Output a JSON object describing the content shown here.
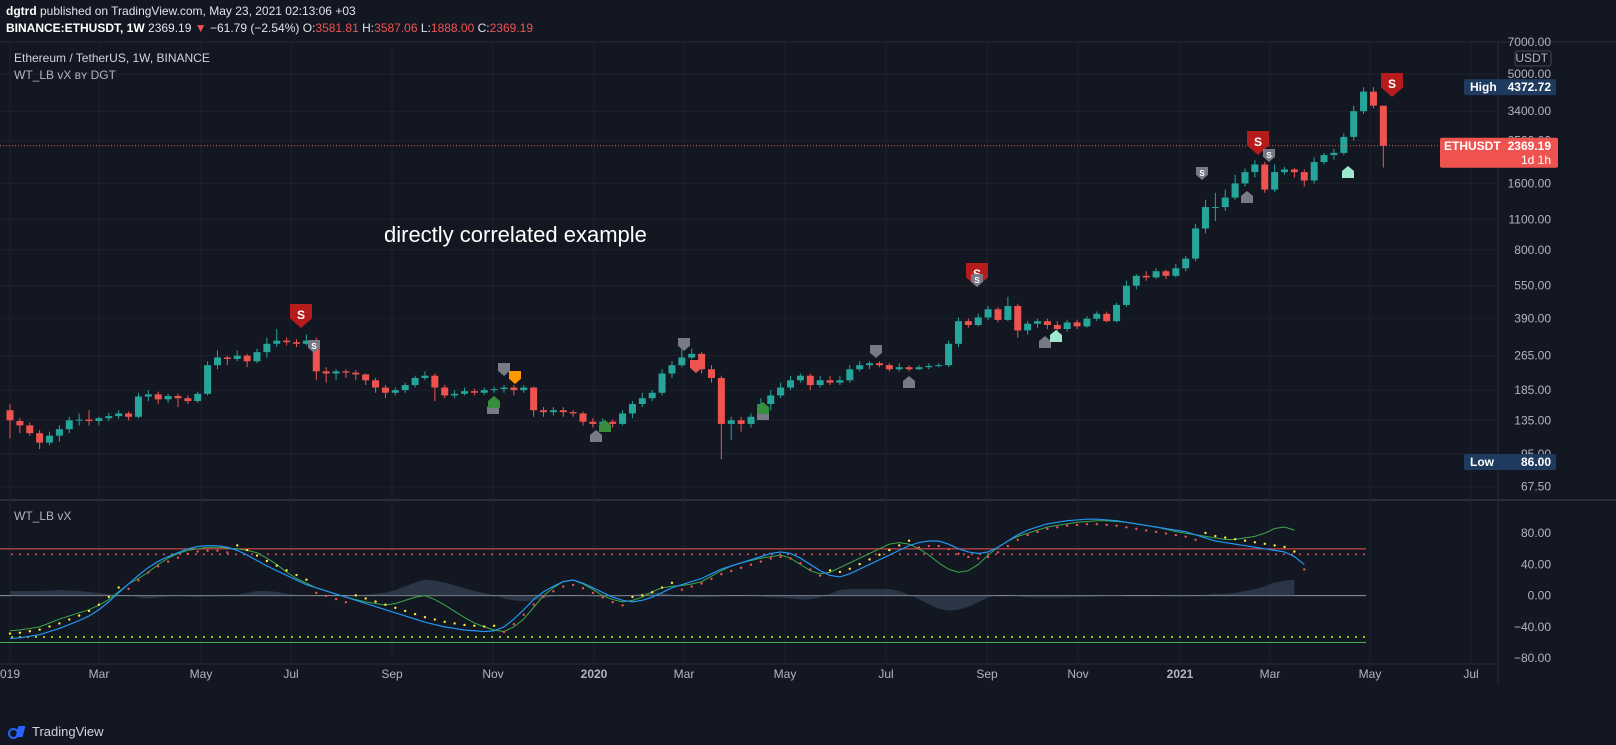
{
  "header": {
    "publisher": "dgtrd",
    "published_text": "published on TradingView.com, May 23, 2021 02:13:06 +03",
    "symbol_line": "BINANCE:ETHUSDT, 1W",
    "last": "2369.19",
    "change": "−61.79 (−2.54%)",
    "o_label": "O:",
    "o": "3581.81",
    "h_label": "H:",
    "h": "3587.06",
    "l_label": "L:",
    "l": "1888.00",
    "c_label": "C:",
    "c": "2369.19"
  },
  "legend": {
    "pair": "Ethereum / TetherUS, 1W, BINANCE",
    "indicator": "WT_LB vX ʙʏ DGT",
    "lower_pane": "WT_LB vX"
  },
  "annotation": "directly correlated example",
  "price_axis": {
    "currency": "USDT",
    "high_label": "High",
    "high_value": "4372.72",
    "low_label": "Low",
    "low_value": "86.00",
    "last_symbol": "ETHUSDT",
    "last_value": "2369.19",
    "countdown": "1d 1h",
    "ticks": [
      "7000.00",
      "5000.00",
      "3400.00",
      "2500.00",
      "1600.00",
      "1100.00",
      "800.00",
      "550.00",
      "390.00",
      "265.00",
      "185.00",
      "135.00",
      "95.00",
      "67.50"
    ]
  },
  "osc_axis": {
    "ticks": [
      "80.00",
      "40.00",
      "0.00",
      "−40.00",
      "−80.00"
    ]
  },
  "time_axis": {
    "labels": [
      "019",
      "Mar",
      "May",
      "Jul",
      "Sep",
      "Nov",
      "2020",
      "Mar",
      "May",
      "Jul",
      "Sep",
      "Nov",
      "2021",
      "Mar",
      "May",
      "Jul"
    ]
  },
  "footer": {
    "brand": "TradingView"
  },
  "colors": {
    "up": "#26a69a",
    "down": "#ef5350",
    "bg": "#131722",
    "grid": "#1e222d",
    "wt1": "#3ea84a",
    "wt2": "#2196f3"
  },
  "chart_data": {
    "type": "candlestick",
    "scale": "log",
    "ylim": [
      60,
      7000
    ],
    "interval": "1W",
    "candles": [
      [
        150,
        135,
        160,
        112
      ],
      [
        134,
        128,
        138,
        118
      ],
      [
        128,
        118,
        132,
        115
      ],
      [
        118,
        107,
        122,
        100
      ],
      [
        107,
        115,
        120,
        104
      ],
      [
        115,
        123,
        128,
        108
      ],
      [
        123,
        135,
        140,
        118
      ],
      [
        135,
        136,
        145,
        128
      ],
      [
        136,
        134,
        150,
        128
      ],
      [
        134,
        138,
        140,
        128
      ],
      [
        138,
        141,
        146,
        134
      ],
      [
        141,
        145,
        150,
        137
      ],
      [
        145,
        140,
        148,
        135
      ],
      [
        140,
        173,
        180,
        138
      ],
      [
        173,
        177,
        185,
        165
      ],
      [
        177,
        168,
        182,
        160
      ],
      [
        168,
        174,
        178,
        162
      ],
      [
        174,
        170,
        178,
        155
      ],
      [
        170,
        165,
        175,
        160
      ],
      [
        165,
        178,
        182,
        162
      ],
      [
        178,
        240,
        250,
        175
      ],
      [
        240,
        260,
        280,
        230
      ],
      [
        260,
        256,
        265,
        240
      ],
      [
        256,
        265,
        280,
        250
      ],
      [
        265,
        250,
        270,
        235
      ],
      [
        250,
        275,
        285,
        245
      ],
      [
        275,
        300,
        320,
        260
      ],
      [
        300,
        310,
        350,
        290
      ],
      [
        310,
        305,
        320,
        295
      ],
      [
        305,
        300,
        315,
        290
      ],
      [
        300,
        310,
        330,
        295
      ],
      [
        310,
        225,
        320,
        205
      ],
      [
        225,
        220,
        235,
        200
      ],
      [
        220,
        225,
        230,
        205
      ],
      [
        225,
        222,
        230,
        210
      ],
      [
        222,
        218,
        228,
        205
      ],
      [
        218,
        205,
        220,
        195
      ],
      [
        205,
        190,
        210,
        180
      ],
      [
        190,
        180,
        195,
        170
      ],
      [
        180,
        185,
        190,
        175
      ],
      [
        185,
        195,
        200,
        180
      ],
      [
        195,
        210,
        215,
        190
      ],
      [
        210,
        215,
        225,
        205
      ],
      [
        215,
        190,
        220,
        165
      ],
      [
        190,
        175,
        195,
        170
      ],
      [
        175,
        178,
        185,
        170
      ],
      [
        178,
        183,
        190,
        175
      ],
      [
        183,
        180,
        188,
        175
      ],
      [
        180,
        185,
        190,
        176
      ],
      [
        185,
        187,
        192,
        180
      ],
      [
        187,
        190,
        195,
        180
      ],
      [
        190,
        185,
        195,
        175
      ],
      [
        185,
        190,
        195,
        180
      ],
      [
        190,
        150,
        192,
        140
      ],
      [
        150,
        147,
        155,
        140
      ],
      [
        147,
        150,
        155,
        142
      ],
      [
        150,
        147,
        155,
        140
      ],
      [
        147,
        145,
        150,
        140
      ],
      [
        145,
        133,
        148,
        128
      ],
      [
        133,
        130,
        138,
        125
      ],
      [
        130,
        133,
        138,
        126
      ],
      [
        133,
        130,
        136,
        125
      ],
      [
        130,
        145,
        150,
        128
      ],
      [
        145,
        160,
        165,
        138
      ],
      [
        160,
        170,
        180,
        155
      ],
      [
        170,
        180,
        185,
        165
      ],
      [
        180,
        220,
        230,
        175
      ],
      [
        220,
        240,
        250,
        210
      ],
      [
        240,
        260,
        290,
        235
      ],
      [
        260,
        270,
        285,
        255
      ],
      [
        270,
        230,
        275,
        220
      ],
      [
        230,
        210,
        240,
        200
      ],
      [
        210,
        130,
        215,
        90
      ],
      [
        130,
        135,
        140,
        110
      ],
      [
        135,
        130,
        140,
        120
      ],
      [
        130,
        140,
        145,
        125
      ],
      [
        140,
        160,
        170,
        135
      ],
      [
        160,
        175,
        185,
        150
      ],
      [
        175,
        190,
        200,
        170
      ],
      [
        190,
        205,
        215,
        185
      ],
      [
        205,
        215,
        220,
        200
      ],
      [
        215,
        195,
        220,
        185
      ],
      [
        195,
        205,
        215,
        190
      ],
      [
        205,
        200,
        215,
        195
      ],
      [
        200,
        205,
        215,
        195
      ],
      [
        205,
        230,
        240,
        200
      ],
      [
        230,
        240,
        250,
        225
      ],
      [
        240,
        245,
        250,
        230
      ],
      [
        245,
        240,
        250,
        235
      ],
      [
        240,
        230,
        245,
        225
      ],
      [
        230,
        235,
        245,
        225
      ],
      [
        235,
        230,
        240,
        225
      ],
      [
        230,
        235,
        240,
        228
      ],
      [
        235,
        238,
        245,
        230
      ],
      [
        238,
        240,
        245,
        235
      ],
      [
        240,
        300,
        310,
        235
      ],
      [
        300,
        380,
        395,
        290
      ],
      [
        380,
        365,
        390,
        355
      ],
      [
        365,
        395,
        410,
        360
      ],
      [
        395,
        430,
        445,
        385
      ],
      [
        430,
        385,
        440,
        375
      ],
      [
        385,
        445,
        490,
        380
      ],
      [
        445,
        345,
        455,
        320
      ],
      [
        345,
        370,
        380,
        330
      ],
      [
        370,
        380,
        390,
        355
      ],
      [
        380,
        365,
        390,
        350
      ],
      [
        365,
        350,
        380,
        335
      ],
      [
        350,
        375,
        385,
        340
      ],
      [
        375,
        360,
        385,
        350
      ],
      [
        360,
        390,
        400,
        355
      ],
      [
        390,
        410,
        420,
        380
      ],
      [
        410,
        380,
        420,
        375
      ],
      [
        380,
        450,
        460,
        375
      ],
      [
        450,
        550,
        580,
        440
      ],
      [
        550,
        610,
        620,
        530
      ],
      [
        610,
        600,
        640,
        580
      ],
      [
        600,
        640,
        660,
        590
      ],
      [
        640,
        610,
        650,
        590
      ],
      [
        610,
        660,
        690,
        600
      ],
      [
        660,
        730,
        750,
        640
      ],
      [
        730,
        1000,
        1050,
        710
      ],
      [
        1000,
        1250,
        1350,
        950
      ],
      [
        1250,
        1250,
        1450,
        1080
      ],
      [
        1250,
        1380,
        1500,
        1200
      ],
      [
        1380,
        1600,
        1750,
        1350
      ],
      [
        1600,
        1800,
        1870,
        1550
      ],
      [
        1800,
        1950,
        2040,
        1700
      ],
      [
        1950,
        1500,
        2000,
        1450
      ],
      [
        1500,
        1800,
        1950,
        1460
      ],
      [
        1800,
        1850,
        1900,
        1750
      ],
      [
        1850,
        1800,
        1880,
        1700
      ],
      [
        1800,
        1650,
        1850,
        1550
      ],
      [
        1650,
        2000,
        2100,
        1600
      ],
      [
        2000,
        2150,
        2200,
        1950
      ],
      [
        2150,
        2200,
        2300,
        2050
      ],
      [
        2200,
        2600,
        2700,
        2150
      ],
      [
        2600,
        3400,
        3600,
        2500
      ],
      [
        3400,
        4170,
        4372,
        3300
      ],
      [
        4170,
        3600,
        4372,
        3500
      ],
      [
        3600,
        2369,
        3587,
        1888
      ]
    ],
    "oscillator": {
      "ylim": [
        -85,
        120
      ],
      "overbought": [
        60,
        53
      ],
      "oversold": [
        -53,
        -60
      ],
      "wt1": [
        -45,
        -44,
        -42,
        -40,
        -35,
        -30,
        -26,
        -22,
        -18,
        -12,
        -5,
        5,
        15,
        22,
        30,
        40,
        48,
        54,
        58,
        60,
        62,
        62,
        61,
        60,
        58,
        55,
        48,
        40,
        30,
        22,
        16,
        10,
        6,
        2,
        -2,
        -5,
        -8,
        -10,
        -12,
        -10,
        -6,
        -2,
        0,
        -5,
        -12,
        -20,
        -28,
        -35,
        -40,
        -44,
        -46,
        -40,
        -30,
        -15,
        0,
        10,
        18,
        20,
        15,
        8,
        0,
        -5,
        -8,
        -6,
        -2,
        5,
        10,
        12,
        13,
        15,
        18,
        25,
        32,
        38,
        42,
        45,
        48,
        50,
        52,
        48,
        40,
        32,
        28,
        30,
        36,
        42,
        48,
        54,
        60,
        66,
        68,
        66,
        60,
        52,
        42,
        34,
        30,
        32,
        40,
        52,
        62,
        70,
        76,
        80,
        84,
        88,
        90,
        92,
        94,
        95,
        96,
        96,
        95,
        94,
        92,
        90,
        88,
        85,
        82,
        80,
        78,
        76,
        74,
        72,
        72,
        74,
        76,
        80,
        86,
        88,
        84
      ],
      "wt2": [
        -55,
        -54,
        -52,
        -50,
        -46,
        -42,
        -37,
        -32,
        -26,
        -18,
        -8,
        4,
        15,
        26,
        36,
        44,
        50,
        55,
        60,
        63,
        64,
        64,
        62,
        58,
        52,
        45,
        38,
        32,
        26,
        20,
        14,
        10,
        6,
        2,
        -2,
        -6,
        -10,
        -14,
        -18,
        -22,
        -26,
        -30,
        -34,
        -37,
        -40,
        -42,
        -44,
        -45,
        -46,
        -45,
        -40,
        -30,
        -18,
        -5,
        5,
        12,
        18,
        20,
        16,
        10,
        4,
        -2,
        -6,
        -8,
        -6,
        -2,
        4,
        10,
        14,
        18,
        22,
        28,
        34,
        38,
        42,
        46,
        50,
        54,
        56,
        54,
        48,
        40,
        32,
        26,
        24,
        28,
        34,
        40,
        46,
        52,
        58,
        64,
        68,
        70,
        70,
        66,
        60,
        56,
        54,
        56,
        62,
        70,
        78,
        84,
        88,
        92,
        94,
        96,
        97,
        98,
        98,
        97,
        96,
        94,
        92,
        90,
        88,
        86,
        84,
        82,
        78,
        74,
        70,
        68,
        66,
        64,
        62,
        60,
        58,
        56,
        50,
        40
      ]
    }
  }
}
